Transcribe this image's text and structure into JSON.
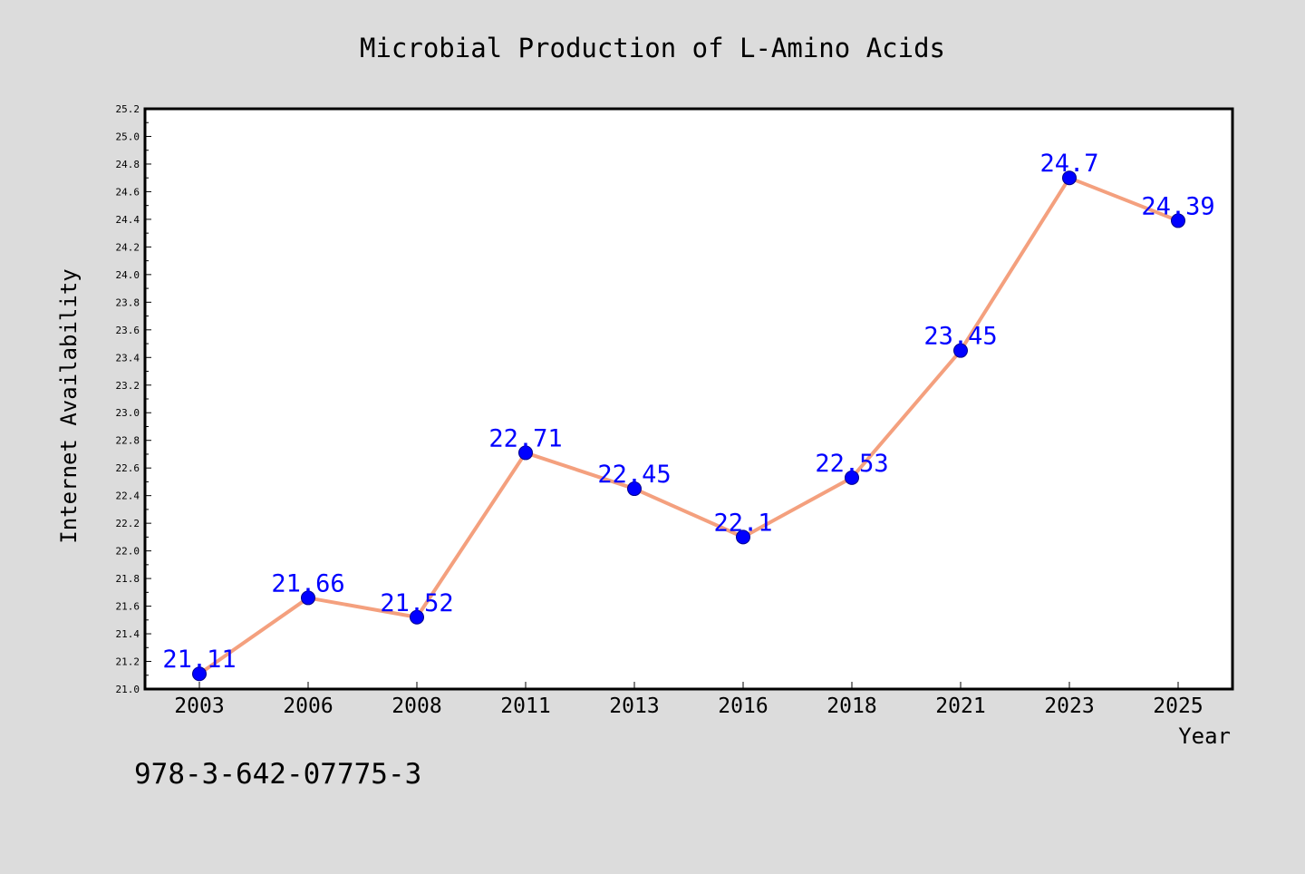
{
  "chart_data": {
    "type": "line",
    "title": "Microbial Production of L-Amino Acids",
    "xlabel": "Year",
    "ylabel": "Internet Availability",
    "categories": [
      "2003",
      "2006",
      "2008",
      "2011",
      "2013",
      "2016",
      "2018",
      "2021",
      "2023",
      "2025"
    ],
    "series": [
      {
        "values": [
          21.11,
          21.66,
          21.52,
          22.71,
          22.45,
          22.1,
          22.53,
          23.45,
          24.7,
          24.39
        ],
        "labels": [
          "21.11",
          "21.66",
          "21.52",
          "22.71",
          "22.45",
          "22.1",
          "22.53",
          "23.45",
          "24.7",
          "24.39"
        ]
      }
    ],
    "ylim": [
      21.0,
      25.2
    ],
    "yticks": [
      "21.0",
      "21.2",
      "21.4",
      "21.6",
      "21.8",
      "22.0",
      "22.2",
      "22.4",
      "22.6",
      "22.8",
      "23.0",
      "23.2",
      "23.4",
      "23.6",
      "23.8",
      "24.0",
      "24.2",
      "24.4",
      "24.6",
      "24.8",
      "25.0",
      "25.2"
    ],
    "grid": false,
    "legend": "none",
    "annotation": "978-3-642-07775-3",
    "colors": {
      "background": "#dcdcdc",
      "plot_background": "#ffffff",
      "line": "#f4a07e",
      "marker": "#0000ff",
      "data_label": "#0000ff",
      "axis": "#000000"
    }
  }
}
